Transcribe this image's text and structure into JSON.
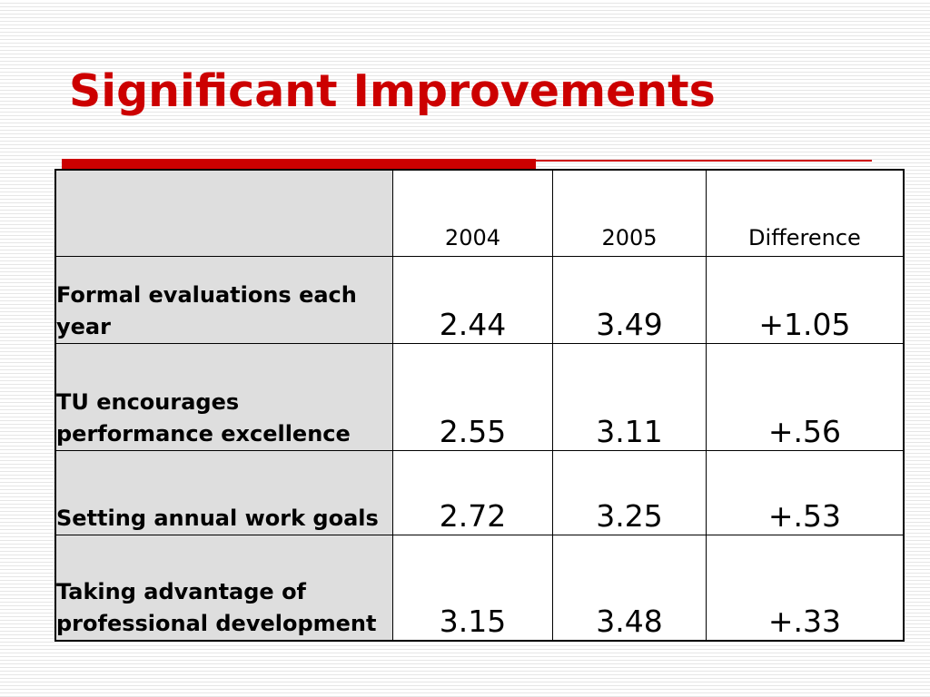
{
  "slide": {
    "title": "Significant Improvements",
    "accent_color": "#cc0000"
  },
  "table": {
    "headers": [
      "",
      "2004",
      "2005",
      "Difference"
    ],
    "rows": [
      {
        "label": "Formal evaluations each year",
        "v2004": "2.44",
        "v2005": "3.49",
        "difference": "+1.05"
      },
      {
        "label": "TU encourages performance excellence",
        "v2004": "2.55",
        "v2005": "3.11",
        "difference": "+.56"
      },
      {
        "label": "Setting annual work goals",
        "v2004": "2.72",
        "v2005": "3.25",
        "difference": "+.53"
      },
      {
        "label": "Taking advantage of professional development",
        "v2004": "3.15",
        "v2005": "3.48",
        "difference": "+.33"
      }
    ]
  }
}
